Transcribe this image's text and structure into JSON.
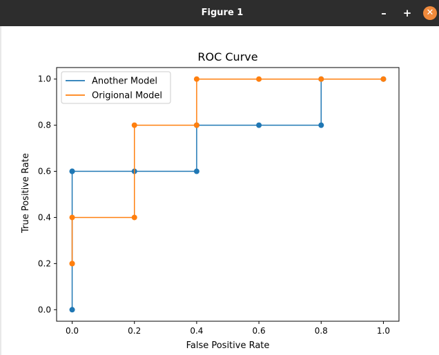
{
  "window": {
    "title": "Figure 1",
    "minimize_glyph": "–",
    "maximize_glyph": "+",
    "close_glyph": "✕"
  },
  "chart_data": {
    "type": "line",
    "title": "ROC Curve",
    "xlabel": "False Positive Rate",
    "ylabel": "True Positive Rate",
    "xlim": [
      -0.05,
      1.05
    ],
    "ylim": [
      -0.05,
      1.05
    ],
    "xticks": [
      "0.0",
      "0.2",
      "0.4",
      "0.6",
      "0.8",
      "1.0"
    ],
    "yticks": [
      "0.0",
      "0.2",
      "0.4",
      "0.6",
      "0.8",
      "1.0"
    ],
    "grid": false,
    "legend_position": "top-left",
    "series": [
      {
        "name": "Another Model",
        "color": "#1f77b4",
        "x": [
          0.0,
          0.0,
          0.0,
          0.2,
          0.4,
          0.4,
          0.6,
          0.8,
          0.8,
          1.0
        ],
        "y": [
          0.0,
          0.6,
          0.6,
          0.6,
          0.6,
          0.8,
          0.8,
          0.8,
          1.0,
          1.0
        ]
      },
      {
        "name": "Origional Model",
        "color": "#ff7f0e",
        "x": [
          0.0,
          0.0,
          0.0,
          0.2,
          0.2,
          0.4,
          0.4,
          0.6,
          0.8,
          1.0
        ],
        "y": [
          0.2,
          0.2,
          0.4,
          0.4,
          0.8,
          0.8,
          1.0,
          1.0,
          1.0,
          1.0
        ]
      }
    ]
  }
}
